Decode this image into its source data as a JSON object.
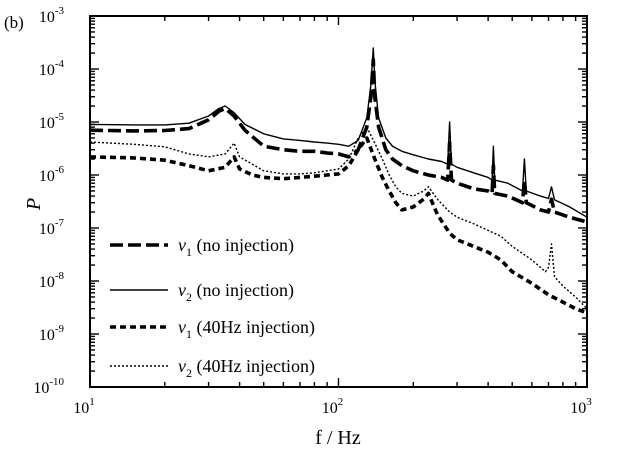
{
  "panel_label": "(b)",
  "chart_data": {
    "type": "line",
    "xscale": "log",
    "yscale": "log",
    "xlim": [
      10,
      1000
    ],
    "ylim": [
      1e-10,
      0.001
    ],
    "xlabel": "f / Hz",
    "ylabel": "P",
    "x_ticks": [
      {
        "value": 10,
        "base": "10",
        "exp": "1"
      },
      {
        "value": 100,
        "base": "10",
        "exp": "2"
      },
      {
        "value": 1000,
        "base": "10",
        "exp": "3"
      }
    ],
    "y_ticks": [
      {
        "value": 1e-10,
        "base": "10",
        "exp": "-10"
      },
      {
        "value": 1e-09,
        "base": "10",
        "exp": "-9"
      },
      {
        "value": 1e-08,
        "base": "10",
        "exp": "-8"
      },
      {
        "value": 1e-07,
        "base": "10",
        "exp": "-7"
      },
      {
        "value": 1e-06,
        "base": "10",
        "exp": "-6"
      },
      {
        "value": 1e-05,
        "base": "10",
        "exp": "-5"
      },
      {
        "value": 0.0001,
        "base": "10",
        "exp": "-4"
      },
      {
        "value": 0.001,
        "base": "10",
        "exp": "-3"
      }
    ],
    "grid": false,
    "legend_position": "lower-left",
    "series": [
      {
        "var": "v",
        "sub": "1",
        "name": "(no injection)",
        "style": "long-dash",
        "points": [
          [
            10,
            7e-06
          ],
          [
            15,
            6.8e-06
          ],
          [
            20,
            6.9e-06
          ],
          [
            25,
            7.5e-06
          ],
          [
            30,
            1.1e-05
          ],
          [
            33,
            1.6e-05
          ],
          [
            35,
            1.8e-05
          ],
          [
            38,
            1.3e-05
          ],
          [
            42,
            7e-06
          ],
          [
            50,
            3.5e-06
          ],
          [
            60,
            3e-06
          ],
          [
            70,
            2.8e-06
          ],
          [
            80,
            2.8e-06
          ],
          [
            90,
            2.6e-06
          ],
          [
            100,
            2.5e-06
          ],
          [
            110,
            2.2e-06
          ],
          [
            120,
            3e-06
          ],
          [
            130,
            8e-06
          ],
          [
            135,
            3e-05
          ],
          [
            138,
            0.00015
          ],
          [
            140,
            3e-05
          ],
          [
            145,
            8e-06
          ],
          [
            155,
            3e-06
          ],
          [
            165,
            2e-06
          ],
          [
            180,
            1.5e-06
          ],
          [
            200,
            1.2e-06
          ],
          [
            230,
            1e-06
          ],
          [
            260,
            9e-07
          ],
          [
            275,
            8e-07
          ],
          [
            280,
            4e-06
          ],
          [
            285,
            8e-07
          ],
          [
            300,
            7e-07
          ],
          [
            350,
            5.5e-07
          ],
          [
            400,
            5e-07
          ],
          [
            415,
            4.5e-07
          ],
          [
            420,
            1.5e-06
          ],
          [
            425,
            4.5e-07
          ],
          [
            480,
            4e-07
          ],
          [
            550,
            3e-07
          ],
          [
            560,
            8e-07
          ],
          [
            570,
            3e-07
          ],
          [
            650,
            2.2e-07
          ],
          [
            700,
            2e-07
          ],
          [
            720,
            3.5e-07
          ],
          [
            740,
            2e-07
          ],
          [
            850,
            1.6e-07
          ],
          [
            1000,
            1.3e-07
          ]
        ]
      },
      {
        "var": "v",
        "sub": "2",
        "name": "(no injection)",
        "style": "solid",
        "points": [
          [
            10,
            9e-06
          ],
          [
            15,
            8.8e-06
          ],
          [
            20,
            8.8e-06
          ],
          [
            25,
            9.5e-06
          ],
          [
            30,
            1.3e-05
          ],
          [
            33,
            1.8e-05
          ],
          [
            35,
            2e-05
          ],
          [
            38,
            1.5e-05
          ],
          [
            42,
            9e-06
          ],
          [
            50,
            6e-06
          ],
          [
            60,
            4.8e-06
          ],
          [
            70,
            4.5e-06
          ],
          [
            80,
            4.2e-06
          ],
          [
            90,
            4e-06
          ],
          [
            100,
            3.8e-06
          ],
          [
            110,
            3.5e-06
          ],
          [
            120,
            4.5e-06
          ],
          [
            130,
            1.2e-05
          ],
          [
            135,
            5e-05
          ],
          [
            138,
            0.00025
          ],
          [
            140,
            6e-05
          ],
          [
            145,
            1.2e-05
          ],
          [
            155,
            5e-06
          ],
          [
            165,
            3.5e-06
          ],
          [
            180,
            2.8e-06
          ],
          [
            200,
            2.4e-06
          ],
          [
            230,
            2e-06
          ],
          [
            260,
            1.8e-06
          ],
          [
            275,
            1.6e-06
          ],
          [
            280,
            1e-05
          ],
          [
            285,
            1.6e-06
          ],
          [
            300,
            1.4e-06
          ],
          [
            350,
            1.1e-06
          ],
          [
            400,
            9e-07
          ],
          [
            415,
            8e-07
          ],
          [
            420,
            3.5e-06
          ],
          [
            425,
            8e-07
          ],
          [
            480,
            7e-07
          ],
          [
            550,
            5e-07
          ],
          [
            560,
            2e-06
          ],
          [
            570,
            5e-07
          ],
          [
            650,
            4e-07
          ],
          [
            700,
            3.6e-07
          ],
          [
            720,
            6e-07
          ],
          [
            740,
            3.4e-07
          ],
          [
            850,
            2.5e-07
          ],
          [
            1000,
            1.6e-07
          ]
        ]
      },
      {
        "var": "v",
        "sub": "1",
        "name": "(40Hz injection)",
        "style": "short-dash",
        "points": [
          [
            10,
            2.2e-06
          ],
          [
            15,
            2.1e-06
          ],
          [
            20,
            1.9e-06
          ],
          [
            25,
            1.5e-06
          ],
          [
            30,
            1.2e-06
          ],
          [
            35,
            1.4e-06
          ],
          [
            38,
            2.2e-06
          ],
          [
            40,
            1.3e-06
          ],
          [
            45,
            1e-06
          ],
          [
            50,
            9e-07
          ],
          [
            60,
            8.5e-07
          ],
          [
            70,
            9e-07
          ],
          [
            80,
            9.5e-07
          ],
          [
            90,
            1e-06
          ],
          [
            100,
            1.05e-06
          ],
          [
            110,
            1.5e-06
          ],
          [
            120,
            3e-06
          ],
          [
            130,
            5e-06
          ],
          [
            140,
            2e-06
          ],
          [
            150,
            9e-07
          ],
          [
            160,
            5e-07
          ],
          [
            170,
            3e-07
          ],
          [
            180,
            2.2e-07
          ],
          [
            200,
            2.5e-07
          ],
          [
            220,
            3.5e-07
          ],
          [
            230,
            4.5e-07
          ],
          [
            250,
            1.8e-07
          ],
          [
            280,
            8e-08
          ],
          [
            300,
            6e-08
          ],
          [
            350,
            4.5e-08
          ],
          [
            400,
            3.5e-08
          ],
          [
            450,
            2.5e-08
          ],
          [
            500,
            1.5e-08
          ],
          [
            600,
            9e-09
          ],
          [
            700,
            5.5e-09
          ],
          [
            800,
            4e-09
          ],
          [
            900,
            3e-09
          ],
          [
            1000,
            2.5e-09
          ]
        ]
      },
      {
        "var": "v",
        "sub": "2",
        "name": "(40Hz injection)",
        "style": "dotted",
        "points": [
          [
            10,
            4.2e-06
          ],
          [
            15,
            3.8e-06
          ],
          [
            20,
            3.4e-06
          ],
          [
            25,
            2.5e-06
          ],
          [
            30,
            2.2e-06
          ],
          [
            35,
            2.5e-06
          ],
          [
            38,
            4e-06
          ],
          [
            40,
            2.2e-06
          ],
          [
            45,
            1.6e-06
          ],
          [
            50,
            1.2e-06
          ],
          [
            60,
            1.05e-06
          ],
          [
            70,
            1.05e-06
          ],
          [
            80,
            1.1e-06
          ],
          [
            90,
            1.2e-06
          ],
          [
            100,
            1.3e-06
          ],
          [
            110,
            2e-06
          ],
          [
            120,
            5e-06
          ],
          [
            130,
            8e-06
          ],
          [
            140,
            4e-06
          ],
          [
            150,
            2e-06
          ],
          [
            160,
            1e-06
          ],
          [
            170,
            6e-07
          ],
          [
            180,
            4.5e-07
          ],
          [
            200,
            4e-07
          ],
          [
            220,
            5e-07
          ],
          [
            230,
            6e-07
          ],
          [
            250,
            3.5e-07
          ],
          [
            280,
            2e-07
          ],
          [
            300,
            1.6e-07
          ],
          [
            350,
            1.2e-07
          ],
          [
            400,
            9e-08
          ],
          [
            450,
            7e-08
          ],
          [
            500,
            4.5e-08
          ],
          [
            600,
            2.5e-08
          ],
          [
            680,
            1.5e-08
          ],
          [
            700,
            1.8e-08
          ],
          [
            720,
            5e-08
          ],
          [
            740,
            1.2e-08
          ],
          [
            800,
            8e-09
          ],
          [
            900,
            5e-09
          ],
          [
            1000,
            3e-09
          ]
        ]
      }
    ]
  }
}
